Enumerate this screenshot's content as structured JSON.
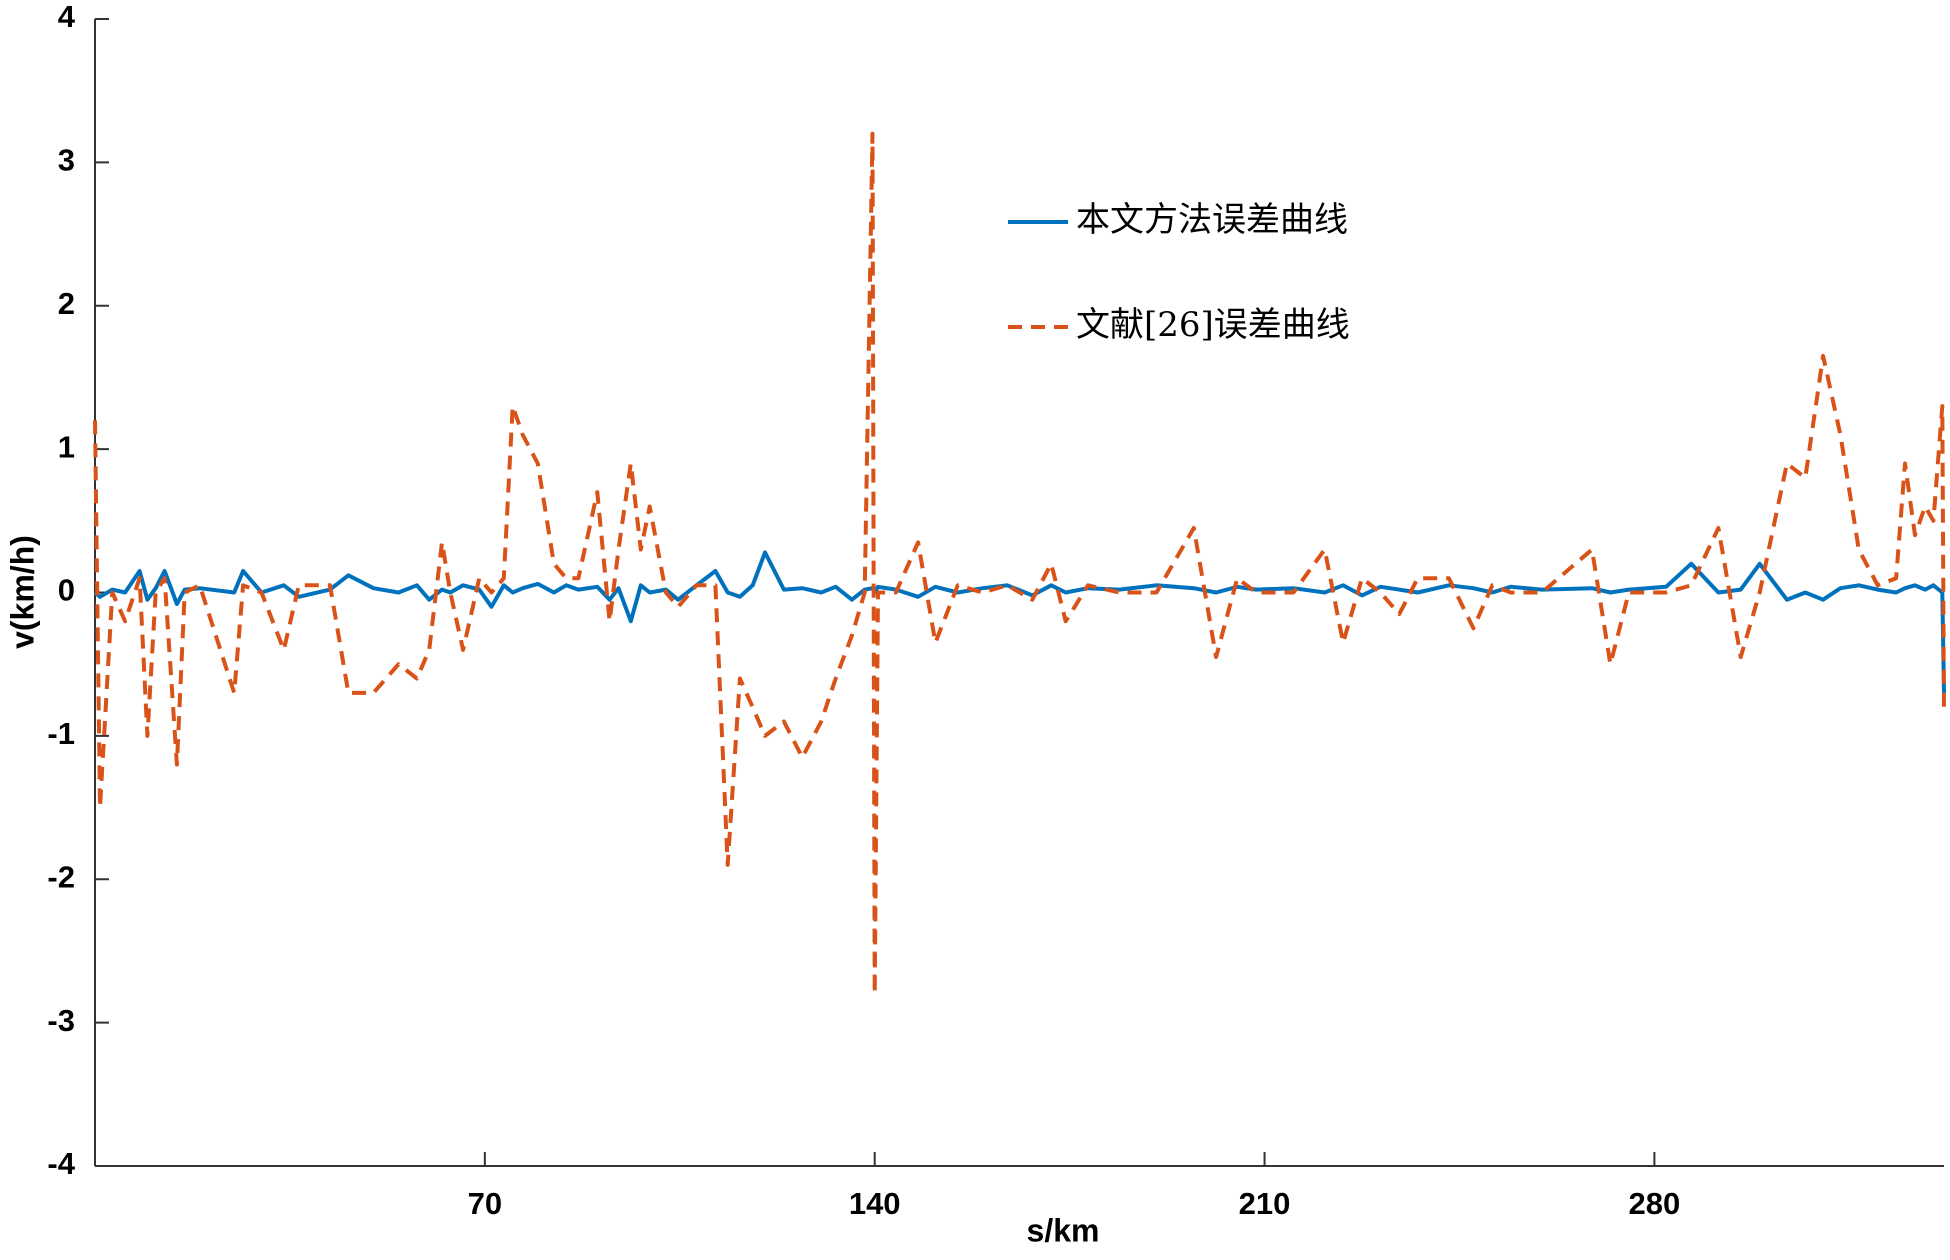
{
  "chart_data": {
    "type": "line",
    "xlabel": "s/km",
    "ylabel": "v(km/h)",
    "xlim": [
      0,
      332
    ],
    "ylim": [
      -4,
      4
    ],
    "xticks": [
      70,
      140,
      210,
      280
    ],
    "yticks": [
      -4,
      -3,
      -2,
      -1,
      0,
      1,
      2,
      3,
      4
    ],
    "legend": "upper center",
    "x": [
      0,
      0.9,
      3.1,
      5.4,
      8.0,
      9.4,
      10.9,
      12.5,
      14.7,
      16.1,
      18.8,
      25.0,
      26.6,
      29.9,
      33.9,
      36.6,
      42.2,
      45.5,
      50.0,
      54.5,
      57.8,
      60.0,
      62.3,
      63.8,
      66.1,
      69.0,
      71.2,
      73.4,
      75.0,
      76.8,
      79.5,
      82.4,
      84.6,
      86.8,
      90.2,
      92.4,
      94.0,
      96.2,
      98.0,
      99.6,
      102.5,
      104.7,
      108.0,
      111.4,
      113.6,
      115.8,
      118.1,
      120.3,
      123.7,
      127.0,
      130.4,
      133.0,
      135.9,
      138.2,
      139.6,
      140.0,
      140.6,
      143.8,
      147.8,
      150.9,
      154.9,
      159.4,
      163.8,
      168.3,
      171.7,
      174.3,
      178.3,
      183.9,
      190.6,
      197.3,
      201.3,
      205.1,
      208.5,
      215.2,
      220.8,
      224.1,
      227.5,
      230.8,
      234.2,
      237.5,
      243.1,
      247.5,
      250.9,
      254.2,
      259.8,
      268.8,
      272.1,
      275.4,
      282.1,
      286.6,
      291.5,
      295.5,
      298.9,
      303.8,
      307.1,
      310.3,
      313.4,
      316.7,
      320.1,
      323.4,
      325.0,
      326.8,
      328.6,
      330.1,
      331.7,
      332
    ],
    "series": [
      {
        "name": "本文方法误差曲线",
        "color": "#0072bd",
        "dashed": false,
        "values": [
          0.0,
          -0.03,
          0.02,
          0.0,
          0.15,
          -0.05,
          0.03,
          0.15,
          -0.08,
          0.02,
          0.03,
          0.0,
          0.15,
          0.0,
          0.05,
          -0.03,
          0.02,
          0.12,
          0.03,
          0.0,
          0.05,
          -0.05,
          0.02,
          0.0,
          0.05,
          0.02,
          -0.1,
          0.05,
          0.0,
          0.03,
          0.06,
          0.0,
          0.05,
          0.02,
          0.04,
          -0.05,
          0.03,
          -0.2,
          0.05,
          0.0,
          0.02,
          -0.05,
          0.05,
          0.15,
          0.0,
          -0.03,
          0.05,
          0.28,
          0.02,
          0.03,
          0.0,
          0.04,
          -0.05,
          0.02,
          0.03,
          0.0,
          0.04,
          0.02,
          -0.03,
          0.04,
          0.0,
          0.03,
          0.05,
          -0.02,
          0.05,
          0.0,
          0.03,
          0.02,
          0.05,
          0.03,
          0.0,
          0.04,
          0.02,
          0.03,
          0.0,
          0.05,
          -0.02,
          0.04,
          0.02,
          0.0,
          0.05,
          0.03,
          0.0,
          0.04,
          0.02,
          0.03,
          0.0,
          0.02,
          0.04,
          0.2,
          0.0,
          0.02,
          0.2,
          -0.05,
          0.0,
          -0.05,
          0.03,
          0.05,
          0.02,
          0.0,
          0.03,
          0.05,
          0.02,
          0.05,
          0.0,
          -0.7
        ]
      },
      {
        "name": "文献[26]误差曲线",
        "color": "#d95319",
        "dashed": true,
        "values": [
          1.2,
          -1.5,
          0.0,
          -0.2,
          0.1,
          -1.0,
          0.0,
          0.1,
          -1.2,
          0.0,
          0.05,
          -0.7,
          0.05,
          0.0,
          -0.4,
          0.05,
          0.05,
          -0.7,
          -0.7,
          -0.5,
          -0.6,
          -0.4,
          0.35,
          0.0,
          -0.4,
          0.1,
          0.0,
          0.1,
          1.3,
          1.1,
          0.9,
          0.2,
          0.1,
          0.1,
          0.7,
          -0.2,
          0.3,
          0.9,
          0.3,
          0.6,
          0.0,
          -0.1,
          0.05,
          0.05,
          -1.9,
          -0.6,
          -0.8,
          -1.0,
          -0.9,
          -1.15,
          -0.9,
          -0.6,
          -0.3,
          0.0,
          3.2,
          -2.8,
          0.0,
          0.0,
          0.35,
          -0.35,
          0.05,
          0.0,
          0.05,
          -0.05,
          0.2,
          -0.2,
          0.05,
          0.0,
          0.0,
          0.45,
          -0.45,
          0.1,
          0.0,
          0.0,
          0.3,
          -0.35,
          0.1,
          0.0,
          -0.15,
          0.1,
          0.1,
          -0.25,
          0.05,
          0.0,
          0.0,
          0.3,
          -0.5,
          0.0,
          0.0,
          0.05,
          0.45,
          -0.45,
          0.0,
          0.9,
          0.8,
          1.65,
          1.1,
          0.3,
          0.05,
          0.1,
          0.9,
          0.4,
          0.6,
          0.5,
          1.3,
          -0.85
        ]
      }
    ]
  }
}
